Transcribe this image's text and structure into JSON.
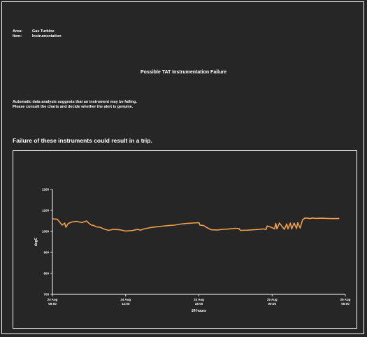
{
  "header": {
    "area_label": "Area:",
    "area_value": "Gas Turbine",
    "item_label": "Item:",
    "item_value": "Instrumentation"
  },
  "title": "Possible TAT Instrumentation Failure",
  "description": {
    "line1": "Automatic data analysis suggests that an instrument may be failing.",
    "line2": "Please consult the charts and decide whether the alert is genuine."
  },
  "warning": "Failure of these instruments could result in a trip.",
  "colors": {
    "background": "#262626",
    "foreground": "#ffffff",
    "series": "#f0a04b"
  },
  "chart_data": {
    "type": "line",
    "xlabel": "24 hours",
    "ylabel": "degC",
    "ylim": [
      700,
      1200
    ],
    "yticks": [
      700,
      800,
      900,
      1000,
      1100,
      1200
    ],
    "ytick_labels": [
      "700",
      "800",
      "900",
      "1000",
      "1100",
      "1200"
    ],
    "xticks": [
      0,
      6,
      12,
      18,
      24
    ],
    "xtick_labels": [
      [
        "24 Aug",
        "06:00"
      ],
      [
        "24 Aug",
        "12:00"
      ],
      [
        "24 Aug",
        "18:00"
      ],
      [
        "25 Aug",
        "00:00"
      ],
      [
        "25 Aug",
        "06:00"
      ]
    ],
    "xlim": [
      0,
      24
    ],
    "grid": false,
    "series": [
      {
        "x": [
          0,
          0.4,
          0.8,
          1.0,
          1.1,
          1.3,
          1.6,
          2.0,
          2.4,
          2.8,
          3.0,
          3.2,
          3.4,
          3.6,
          3.9,
          4.2,
          4.6,
          5.0,
          5.5,
          6.0,
          6.5,
          7.0,
          7.2,
          7.5,
          8.0,
          8.5,
          9.0,
          9.5,
          10.0,
          10.5,
          11.0,
          11.5,
          12.0,
          12.1,
          12.4,
          12.6,
          13.0,
          13.5,
          14.0,
          14.5,
          15.0,
          15.3,
          15.4,
          16.0,
          16.5,
          17.0,
          17.3,
          17.5,
          17.6,
          18.0,
          18.2,
          18.3,
          18.4,
          18.6,
          19.0,
          19.2,
          19.3,
          19.5,
          19.6,
          19.8,
          20.0,
          20.1,
          20.3,
          20.5,
          20.7,
          20.9,
          21.1,
          21.3,
          21.6,
          22.0,
          22.5,
          23.0,
          23.5
        ],
        "y": [
          1060,
          1058,
          1030,
          1040,
          1020,
          1038,
          1045,
          1048,
          1042,
          1050,
          1038,
          1030,
          1028,
          1022,
          1020,
          1012,
          1005,
          1010,
          1008,
          1002,
          1004,
          1010,
          1006,
          1012,
          1018,
          1022,
          1025,
          1028,
          1030,
          1035,
          1038,
          1040,
          1042,
          1030,
          1028,
          1020,
          1008,
          1007,
          1010,
          1012,
          1015,
          1013,
          1005,
          1006,
          1008,
          1010,
          1012,
          1009,
          1026,
          1018,
          1012,
          1038,
          1012,
          1040,
          1010,
          1036,
          1012,
          1040,
          1012,
          1040,
          1014,
          1042,
          1016,
          1056,
          1064,
          1063,
          1061,
          1064,
          1062,
          1063,
          1062,
          1061,
          1062
        ]
      }
    ]
  }
}
